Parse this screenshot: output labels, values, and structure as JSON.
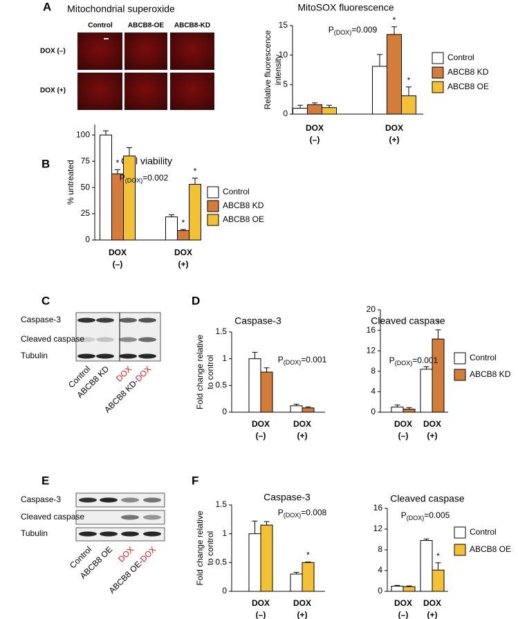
{
  "panel_labels": [
    "A",
    "B",
    "C",
    "D",
    "E",
    "F"
  ],
  "microscopy": {
    "title": "Mitochondrial superoxide",
    "columns": [
      "Control",
      "ABCB8-OE",
      "ABCB8-KD"
    ],
    "rows": [
      "DOX (–)",
      "DOX (+)"
    ]
  },
  "blots": [
    {
      "rows": [
        "Caspase-3",
        "Cleaved caspase",
        "Tubulin"
      ],
      "lanes": [
        [
          {
            "text": "Control",
            "color": "#000000"
          }
        ],
        [
          {
            "text": "ABCB8 KD",
            "color": "#000000"
          }
        ],
        [
          {
            "text": "DOX",
            "color": "#e3191c"
          }
        ],
        [
          {
            "text": "ABCB8 KD-",
            "color": "#000000"
          },
          {
            "text": "DOX",
            "color": "#e3191c"
          }
        ]
      ]
    },
    {
      "rows": [
        "Caspase-3",
        "Cleaved caspase",
        "Tubulin"
      ],
      "lanes": [
        [
          {
            "text": "Control",
            "color": "#000000"
          }
        ],
        [
          {
            "text": "ABCB8 OE",
            "color": "#000000"
          }
        ],
        [
          {
            "text": "DOX",
            "color": "#e3191c"
          }
        ],
        [
          {
            "text": "ABCB8 OE-",
            "color": "#000000"
          },
          {
            "text": "DOX",
            "color": "#e3191c"
          }
        ]
      ]
    }
  ],
  "chart_data": [
    {
      "type": "bar",
      "title": "MitoSOX fluorescence",
      "ylabel": [
        "Relative fluorescence",
        "intensity"
      ],
      "categories": [
        [
          "DOX",
          "(–)"
        ],
        [
          "DOX",
          "(+)"
        ]
      ],
      "category_colors": [
        "#000000",
        "#e3191c"
      ],
      "series": [
        {
          "name": "Control",
          "color": "#ffffff",
          "values": [
            1.0,
            8.1
          ],
          "errors": [
            0.5,
            2.0
          ]
        },
        {
          "name": "ABCB8 KD",
          "color": "#d47d3a",
          "values": [
            1.6,
            13.5
          ],
          "errors": [
            0.3,
            1.3
          ]
        },
        {
          "name": "ABCB8 OE",
          "color": "#f3c234",
          "values": [
            1.1,
            3.1
          ],
          "errors": [
            0.4,
            1.5
          ]
        }
      ],
      "ylim": [
        0,
        15
      ],
      "yticks": [
        0,
        5,
        10,
        15
      ],
      "annotation": {
        "prefix": "P",
        "sub": "(DOX)",
        "text": "=0.009"
      },
      "significance": [
        {
          "series": 1,
          "category": 1,
          "label": "*"
        },
        {
          "series": 2,
          "category": 1,
          "label": "*"
        }
      ],
      "legend": true
    },
    {
      "type": "bar",
      "title": "Cell viability",
      "ylabel": [
        "% untreated"
      ],
      "categories": [
        [
          "DOX",
          "(–)"
        ],
        [
          "DOX",
          "(+)"
        ]
      ],
      "category_colors": [
        "#000000",
        "#e3191c"
      ],
      "series": [
        {
          "name": "Control",
          "color": "#ffffff",
          "values": [
            100,
            22
          ],
          "errors": [
            4,
            2
          ]
        },
        {
          "name": "ABCB8 KD",
          "color": "#d47d3a",
          "values": [
            63,
            9
          ],
          "errors": [
            4,
            1
          ]
        },
        {
          "name": "ABCB8 OE",
          "color": "#f3c234",
          "values": [
            80,
            53
          ],
          "errors": [
            8,
            6
          ]
        }
      ],
      "ylim": [
        0,
        110
      ],
      "yticks": [
        0,
        25,
        50,
        75,
        100
      ],
      "annotation": {
        "prefix": "P",
        "sub": "(DOX)",
        "text": "=0.002"
      },
      "significance": [
        {
          "series": 1,
          "category": 0,
          "label": "*"
        },
        {
          "series": 1,
          "category": 1,
          "label": "*"
        },
        {
          "series": 2,
          "category": 1,
          "label": "*"
        }
      ],
      "legend": true
    },
    {
      "type": "bar",
      "title": "Caspase-3",
      "ylabel": [
        "Fold change relative",
        "to control"
      ],
      "categories": [
        [
          "DOX",
          "(–)"
        ],
        [
          "DOX",
          "(+)"
        ]
      ],
      "category_colors": [
        "#000000",
        "#e3191c"
      ],
      "series": [
        {
          "name": "Control",
          "color": "#ffffff",
          "values": [
            1.0,
            0.12
          ],
          "errors": [
            0.12,
            0.03
          ]
        },
        {
          "name": "ABCB8 KD",
          "color": "#d47d3a",
          "values": [
            0.75,
            0.08
          ],
          "errors": [
            0.08,
            0.02
          ]
        }
      ],
      "ylim": [
        0,
        1.5
      ],
      "yticks": [
        0,
        0.5,
        1,
        1.5
      ],
      "annotation": {
        "prefix": "P",
        "sub": "(DOX)",
        "text": "=0.001"
      },
      "significance": [],
      "legend": false
    },
    {
      "type": "bar",
      "title": "Cleaved caspase",
      "categories": [
        [
          "DOX",
          "(–)"
        ],
        [
          "DOX",
          "(+)"
        ]
      ],
      "category_colors": [
        "#000000",
        "#e3191c"
      ],
      "series": [
        {
          "name": "Control",
          "color": "#ffffff",
          "values": [
            1.0,
            8.4
          ],
          "errors": [
            0.4,
            0.5
          ]
        },
        {
          "name": "ABCB8 KD",
          "color": "#d47d3a",
          "values": [
            0.6,
            14.3
          ],
          "errors": [
            0.3,
            1.8
          ]
        }
      ],
      "ylim": [
        0,
        20
      ],
      "yticks": [
        0,
        4,
        8,
        12,
        16,
        20
      ],
      "annotation": {
        "prefix": "P",
        "sub": "(DOX)",
        "text": "=0.001"
      },
      "significance": [
        {
          "series": 1,
          "category": 1,
          "label": "*"
        }
      ],
      "legend": true
    },
    {
      "type": "bar",
      "title": "Caspase-3",
      "ylabel": [
        "Fold change relative",
        "to control"
      ],
      "categories": [
        [
          "DOX",
          "(–)"
        ],
        [
          "DOX",
          "(+)"
        ]
      ],
      "category_colors": [
        "#000000",
        "#e3191c"
      ],
      "series": [
        {
          "name": "Control",
          "color": "#ffffff",
          "values": [
            1.0,
            0.3
          ],
          "errors": [
            0.22,
            0.03
          ]
        },
        {
          "name": "ABCB8 OE",
          "color": "#f3c234",
          "values": [
            1.15,
            0.5
          ],
          "errors": [
            0.06,
            0.01
          ]
        }
      ],
      "ylim": [
        0,
        1.5
      ],
      "yticks": [
        0,
        0.5,
        1,
        1.5
      ],
      "annotation": {
        "prefix": "P",
        "sub": "(DOX)",
        "text": "=0.008"
      },
      "significance": [
        {
          "series": 1,
          "category": 1,
          "label": "*"
        }
      ],
      "legend": false
    },
    {
      "type": "bar",
      "title": "Cleaved caspase",
      "categories": [
        [
          "DOX",
          "(–)"
        ],
        [
          "DOX",
          "(+)"
        ]
      ],
      "category_colors": [
        "#000000",
        "#e3191c"
      ],
      "series": [
        {
          "name": "Control",
          "color": "#ffffff",
          "values": [
            1.0,
            9.8
          ],
          "errors": [
            0.15,
            0.3
          ]
        },
        {
          "name": "ABCB8 OE",
          "color": "#f3c234",
          "values": [
            0.9,
            4.1
          ],
          "errors": [
            0.15,
            1.4
          ]
        }
      ],
      "ylim": [
        0,
        16
      ],
      "yticks": [
        0,
        4,
        8,
        12,
        16
      ],
      "annotation": {
        "prefix": "P",
        "sub": "(DOX)",
        "text": "=0.005"
      },
      "significance": [
        {
          "series": 1,
          "category": 1,
          "label": "*"
        }
      ],
      "legend": true
    }
  ]
}
